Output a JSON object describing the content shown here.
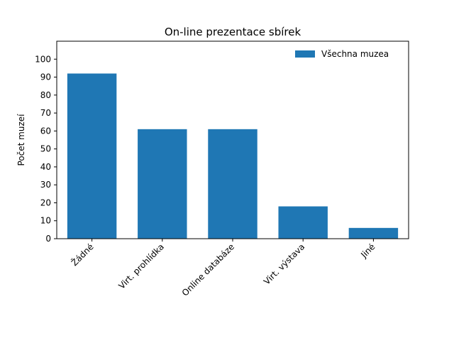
{
  "chart_data": {
    "type": "bar",
    "title": "On-line prezentace sbírek",
    "xlabel": "",
    "ylabel": "Počet muzeí",
    "categories": [
      "Žádné",
      "Virt. prohlídka",
      "Online databáze",
      "Virt. výstava",
      "Jiné"
    ],
    "series": [
      {
        "name": "Všechna muzea",
        "values": [
          92,
          61,
          61,
          18,
          6
        ]
      }
    ],
    "ylim": [
      0,
      110
    ],
    "yticks": [
      0,
      10,
      20,
      30,
      40,
      50,
      60,
      70,
      80,
      90,
      100
    ],
    "grid": false,
    "legend_position": "top-right",
    "bar_color": "#1f77b4"
  }
}
